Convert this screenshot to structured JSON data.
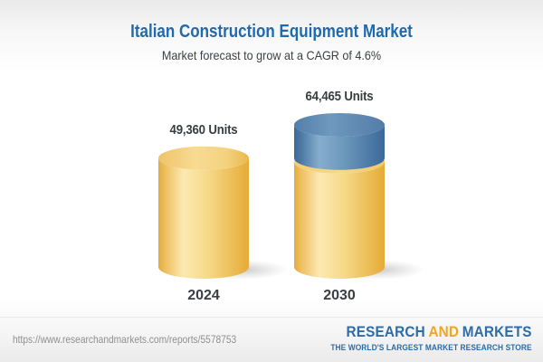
{
  "chart_data": {
    "type": "bar",
    "variant": "3d-cylinder",
    "title": "Italian Construction Equipment Market",
    "subtitle": "Market forecast to grow at a CAGR of 4.6%",
    "cagr": "4.6%",
    "unit": "Units",
    "categories": [
      "2024",
      "2030"
    ],
    "values": [
      49360,
      64465
    ],
    "value_labels": [
      "49,360 Units",
      "64,465 Units"
    ],
    "legend_position": "none",
    "grid": false,
    "notes": "2030 cylinder shows the 2024 base volume in gold with the incremental growth as a blue top segment",
    "colors": {
      "base_segment": "#f2c763",
      "growth_segment": "#4e7ca8",
      "title_color": "#1e6ab0",
      "label_color": "#3a3d42"
    }
  },
  "footer": {
    "url": "https://www.researchandmarkets.com/reports/5578753",
    "logo": {
      "part1": "RESEARCH",
      "part2": "AND",
      "part3": "MARKETS",
      "tagline": "THE WORLD'S LARGEST MARKET RESEARCH STORE",
      "blue": "#2d6ca7",
      "gold": "#f0a61f"
    }
  }
}
